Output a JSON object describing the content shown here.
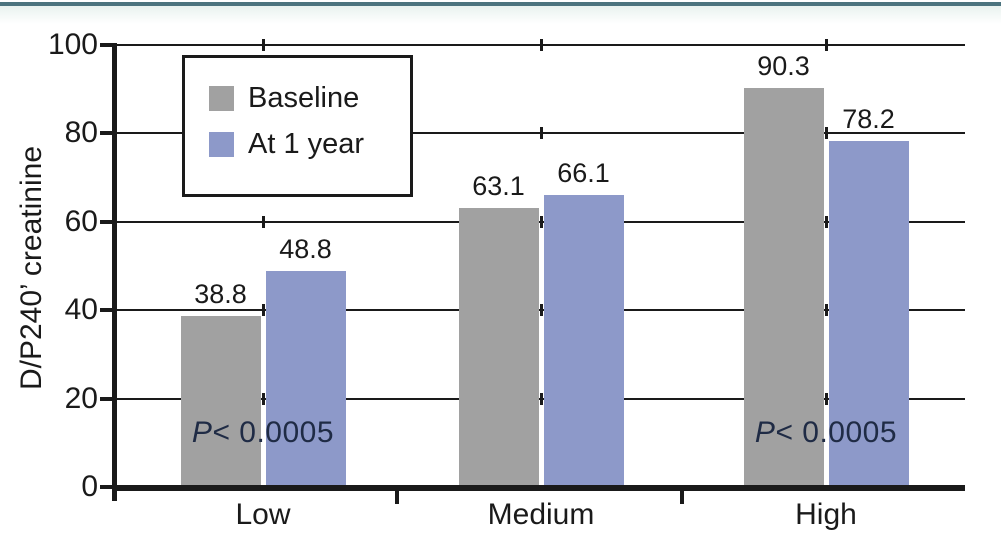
{
  "colors": {
    "accent_teal": "#4c747f",
    "grid_axis": "#1a1a1a",
    "annotation_text": "#1f2b45"
  },
  "chart_data": {
    "type": "bar",
    "categories": [
      "Low",
      "Medium",
      "High"
    ],
    "series": [
      {
        "name": "Baseline",
        "color": "#a1a1a1",
        "values": [
          38.8,
          63.1,
          90.3
        ]
      },
      {
        "name": "At 1 year",
        "color": "#8d99c9",
        "values": [
          48.8,
          66.1,
          78.2
        ]
      }
    ],
    "value_labels": [
      [
        "38.8",
        "63.1",
        "90.3"
      ],
      [
        "48.8",
        "66.1",
        "78.2"
      ]
    ],
    "title": "",
    "xlabel": "",
    "ylabel": "D/P240’ creatinine",
    "ylim": [
      0,
      100
    ],
    "yticks": [
      0,
      20,
      40,
      60,
      80,
      100
    ],
    "ytick_labels": [
      "0",
      "20",
      "40",
      "60",
      "80",
      "100"
    ],
    "grid": true,
    "legend_position": "top-left",
    "annotations": [
      {
        "category": "Low",
        "italic_part": "P",
        "text": "< 0.0005"
      },
      {
        "category": "High",
        "italic_part": "P",
        "text": "< 0.0005"
      }
    ]
  }
}
